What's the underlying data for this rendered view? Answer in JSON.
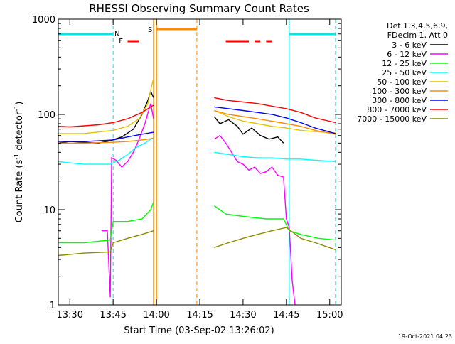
{
  "title": "RHESSI Observing Summary Count Rates",
  "timestamp": "19-Oct-2021 04:23",
  "chart_data": {
    "type": "line",
    "title": "RHESSI Observing Summary Count Rates",
    "xlabel": "Start Time (03-Sep-02 13:26:02)",
    "ylabel_parts": [
      "Count Rate (s",
      "-1",
      " detector",
      "-1",
      ")"
    ],
    "yscale": "log",
    "ylim": [
      1,
      1000
    ],
    "xlim": [
      "13:26:02",
      "15:04:00"
    ],
    "x_ticks": [
      "13:30",
      "13:45",
      "14:00",
      "14:15",
      "14:30",
      "14:45",
      "15:00"
    ],
    "y_ticks": [
      "1",
      "10",
      "100",
      "1000"
    ],
    "legend_header": [
      "Det 1,3,4,5,6,9,",
      "FDecim 1, Att 0"
    ],
    "legend_position": "right",
    "series": [
      {
        "name": "3 - 6 keV",
        "color": "#000000",
        "points": [
          [
            "13:26",
            50
          ],
          [
            "13:30",
            52
          ],
          [
            "13:35",
            51
          ],
          [
            "13:40",
            50
          ],
          [
            "13:44",
            53
          ],
          [
            "13:48",
            58
          ],
          [
            "13:52",
            70
          ],
          [
            "13:55",
            100
          ],
          [
            "13:57",
            140
          ],
          [
            "13:58",
            175
          ],
          [
            "13:59",
            150
          ],
          [
            "14:20",
            95
          ],
          [
            "14:22",
            80
          ],
          [
            "14:25",
            88
          ],
          [
            "14:28",
            75
          ],
          [
            "14:30",
            62
          ],
          [
            "14:33",
            72
          ],
          [
            "14:36",
            60
          ],
          [
            "14:39",
            55
          ],
          [
            "14:42",
            58
          ],
          [
            "14:44",
            50
          ]
        ]
      },
      {
        "name": "6 - 12 keV",
        "color": "#ff00ff",
        "points": [
          [
            "13:41",
            6
          ],
          [
            "13:43",
            6
          ],
          [
            "13:44",
            1.2
          ],
          [
            "13:44.5",
            35
          ],
          [
            "13:46",
            33
          ],
          [
            "13:48",
            28
          ],
          [
            "13:50",
            32
          ],
          [
            "13:52",
            40
          ],
          [
            "13:54",
            55
          ],
          [
            "13:56",
            80
          ],
          [
            "13:58",
            130
          ],
          [
            "13:59",
            90
          ],
          [
            "14:20",
            55
          ],
          [
            "14:22",
            60
          ],
          [
            "14:24",
            50
          ],
          [
            "14:26",
            40
          ],
          [
            "14:28",
            32
          ],
          [
            "14:30",
            30
          ],
          [
            "14:32",
            26
          ],
          [
            "14:34",
            28
          ],
          [
            "14:36",
            24
          ],
          [
            "14:38",
            25
          ],
          [
            "14:40",
            28
          ],
          [
            "14:42",
            23
          ],
          [
            "14:44",
            22
          ],
          [
            "14:45",
            8
          ],
          [
            "14:46",
            6.5
          ],
          [
            "14:47",
            1.8
          ],
          [
            "14:48",
            1.0
          ]
        ]
      },
      {
        "name": "12 - 25 keV",
        "color": "#00ff00",
        "points": [
          [
            "13:26",
            4.5
          ],
          [
            "13:35",
            4.5
          ],
          [
            "13:44",
            4.8
          ],
          [
            "13:45",
            7.5
          ],
          [
            "13:50",
            7.5
          ],
          [
            "13:55",
            8
          ],
          [
            "13:58",
            10
          ],
          [
            "13:59",
            12
          ],
          [
            "14:20",
            11
          ],
          [
            "14:24",
            9
          ],
          [
            "14:30",
            8.5
          ],
          [
            "14:38",
            8
          ],
          [
            "14:44",
            8
          ],
          [
            "14:46",
            6
          ],
          [
            "14:50",
            5.5
          ],
          [
            "14:56",
            5
          ],
          [
            "15:02",
            4.8
          ]
        ]
      },
      {
        "name": "25 - 50 keV",
        "color": "#00ffff",
        "points": [
          [
            "13:26",
            32
          ],
          [
            "13:30",
            31
          ],
          [
            "13:35",
            30
          ],
          [
            "13:40",
            30
          ],
          [
            "13:44",
            30
          ],
          [
            "13:47",
            33
          ],
          [
            "13:50",
            38
          ],
          [
            "13:53",
            45
          ],
          [
            "13:56",
            50
          ],
          [
            "13:58",
            55
          ],
          [
            "13:59",
            57
          ],
          [
            "14:20",
            40
          ],
          [
            "14:25",
            38
          ],
          [
            "14:30",
            36
          ],
          [
            "14:35",
            35
          ],
          [
            "14:40",
            35
          ],
          [
            "14:45",
            34
          ],
          [
            "14:50",
            34
          ],
          [
            "14:55",
            33
          ],
          [
            "15:02",
            32
          ]
        ]
      },
      {
        "name": "50 - 100 keV",
        "color": "#e6c200",
        "points": [
          [
            "13:26",
            63
          ],
          [
            "13:35",
            63
          ],
          [
            "13:45",
            68
          ],
          [
            "13:50",
            75
          ],
          [
            "13:54",
            90
          ],
          [
            "13:57",
            130
          ],
          [
            "13:58",
            180
          ],
          [
            "13:59",
            240
          ],
          [
            "14:20",
            110
          ],
          [
            "14:25",
            95
          ],
          [
            "14:30",
            85
          ],
          [
            "14:35",
            80
          ],
          [
            "14:40",
            75
          ],
          [
            "14:45",
            72
          ],
          [
            "14:50",
            68
          ],
          [
            "14:55",
            66
          ],
          [
            "15:02",
            64
          ]
        ]
      },
      {
        "name": "100 - 300 keV",
        "color": "#ff8c00",
        "points": [
          [
            "13:26",
            50
          ],
          [
            "13:35",
            50
          ],
          [
            "13:45",
            51
          ],
          [
            "13:50",
            52
          ],
          [
            "13:55",
            54
          ],
          [
            "13:59",
            56
          ],
          [
            "14:20",
            110
          ],
          [
            "14:25",
            100
          ],
          [
            "14:30",
            95
          ],
          [
            "14:35",
            90
          ],
          [
            "14:40",
            85
          ],
          [
            "14:45",
            80
          ],
          [
            "14:50",
            75
          ],
          [
            "14:55",
            68
          ],
          [
            "15:02",
            62
          ]
        ]
      },
      {
        "name": "300 - 800 keV",
        "color": "#0000ff",
        "points": [
          [
            "13:26",
            52
          ],
          [
            "13:35",
            52
          ],
          [
            "13:45",
            54
          ],
          [
            "13:50",
            58
          ],
          [
            "13:55",
            62
          ],
          [
            "13:59",
            65
          ],
          [
            "14:20",
            120
          ],
          [
            "14:25",
            115
          ],
          [
            "14:30",
            110
          ],
          [
            "14:35",
            105
          ],
          [
            "14:40",
            100
          ],
          [
            "14:45",
            92
          ],
          [
            "14:50",
            82
          ],
          [
            "14:55",
            72
          ],
          [
            "15:02",
            63
          ]
        ]
      },
      {
        "name": "800 - 7000 keV",
        "color": "#ff0000",
        "points": [
          [
            "13:26",
            75
          ],
          [
            "13:30",
            74
          ],
          [
            "13:35",
            76
          ],
          [
            "13:40",
            78
          ],
          [
            "13:45",
            82
          ],
          [
            "13:50",
            90
          ],
          [
            "13:55",
            105
          ],
          [
            "13:58",
            120
          ],
          [
            "13:59",
            125
          ],
          [
            "14:20",
            150
          ],
          [
            "14:25",
            140
          ],
          [
            "14:30",
            135
          ],
          [
            "14:35",
            130
          ],
          [
            "14:40",
            122
          ],
          [
            "14:45",
            115
          ],
          [
            "14:50",
            105
          ],
          [
            "14:55",
            92
          ],
          [
            "15:02",
            82
          ]
        ]
      },
      {
        "name": "7000 - 15000 keV",
        "color": "#8b8b00",
        "points": [
          [
            "13:26",
            3.3
          ],
          [
            "13:35",
            3.5
          ],
          [
            "13:44",
            3.6
          ],
          [
            "13:45",
            4.5
          ],
          [
            "13:50",
            5
          ],
          [
            "13:55",
            5.5
          ],
          [
            "13:59",
            6
          ],
          [
            "14:20",
            4
          ],
          [
            "14:25",
            4.5
          ],
          [
            "14:30",
            5
          ],
          [
            "14:35",
            5.5
          ],
          [
            "14:40",
            6
          ],
          [
            "14:45",
            6.5
          ],
          [
            "14:50",
            5
          ],
          [
            "14:55",
            4.5
          ],
          [
            "15:02",
            3.8
          ]
        ]
      }
    ],
    "flags": {
      "N_label": "N",
      "F_label": "F",
      "S_label": "S",
      "night": [
        [
          "13:26",
          "13:45"
        ],
        [
          "14:46",
          "15:02"
        ]
      ],
      "flare": [
        [
          "13:50",
          "13:54"
        ],
        [
          "14:24",
          "14:32"
        ],
        [
          "14:34",
          "14:36"
        ],
        [
          "14:38",
          "14:40"
        ]
      ],
      "saa": [
        [
          "14:00",
          "14:14"
        ]
      ]
    },
    "vlines": {
      "cyan_dashed": [
        "13:45",
        "15:02"
      ],
      "cyan_solid": [
        "14:46"
      ],
      "orange_solid": [
        "13:59",
        "14:00"
      ],
      "orange_dashed": [
        "14:14"
      ]
    }
  }
}
